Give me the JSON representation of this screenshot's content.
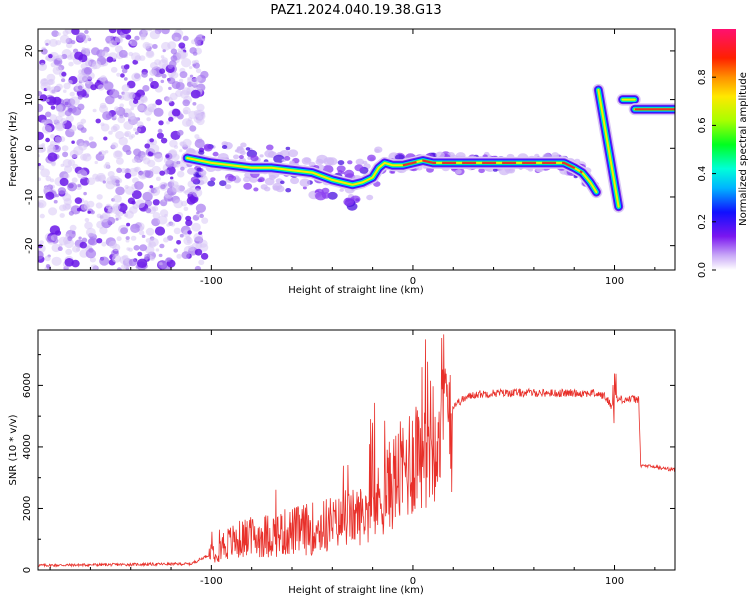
{
  "title": "PAZ1.2024.040.19.38.G13",
  "colors": {
    "snr_line": "#e8302a",
    "spectrogram_low": "#d9c8f5",
    "spectrogram_mid": "#6a18e8",
    "track_core": "#e8302a"
  },
  "chart_data": [
    {
      "type": "heatmap",
      "name": "spectrogram",
      "xlabel": "Height of straight line (km)",
      "ylabel": "Frequency (Hz)",
      "xlim": [
        -186,
        130
      ],
      "ylim": [
        -25,
        24.5
      ],
      "x_ticks": [
        -100,
        0,
        100
      ],
      "x_tick_labels": [
        "-100",
        "0",
        "100"
      ],
      "y_ticks": [
        -20,
        -10,
        0,
        10,
        20
      ],
      "y_tick_labels": [
        "-20",
        "-10",
        "0",
        "10",
        "20"
      ],
      "colorbar": {
        "label": "Normalized spectral amplitude",
        "range": [
          0,
          1
        ],
        "ticks": [
          0.0,
          0.2,
          0.4,
          0.6,
          0.8
        ],
        "tick_labels": [
          "0.0",
          "0.2",
          "0.4",
          "0.6",
          "0.8"
        ],
        "colormap": "rainbow (white-violet-blue-cyan-green-yellow-red-magenta)"
      },
      "noise_region_x": [
        -186,
        -107
      ],
      "signal_track": {
        "x": [
          -112,
          -100,
          -90,
          -80,
          -70,
          -60,
          -50,
          -40,
          -35,
          -30,
          -25,
          -20,
          -17,
          -14,
          -10,
          -5,
          0,
          5,
          10,
          20,
          30,
          40,
          50,
          60,
          70,
          75,
          80,
          84,
          88,
          91
        ],
        "y": [
          -2,
          -3,
          -3.5,
          -4,
          -4,
          -4.5,
          -5,
          -6.5,
          -7,
          -7.5,
          -7,
          -6,
          -4,
          -3,
          -3.5,
          -3.5,
          -3,
          -2.5,
          -3,
          -3,
          -3,
          -3,
          -3,
          -3,
          -3,
          -3,
          -4,
          -5,
          -7,
          -9
        ]
      },
      "tail_segments": [
        {
          "x": [
            92,
            102
          ],
          "y": [
            12,
            -12
          ]
        },
        {
          "x": [
            104,
            110
          ],
          "y": [
            10,
            10
          ]
        },
        {
          "x": [
            110,
            130
          ],
          "y": [
            8,
            8
          ]
        }
      ]
    },
    {
      "type": "line",
      "name": "snr",
      "xlabel": "Height of straight line (km)",
      "ylabel": "SNR (10 * v/v)",
      "xlim": [
        -186,
        130
      ],
      "ylim": [
        0,
        7800
      ],
      "x_ticks": [
        -100,
        0,
        100
      ],
      "x_tick_labels": [
        "-100",
        "0",
        "100"
      ],
      "y_ticks": [
        0,
        2000,
        4000,
        6000
      ],
      "y_tick_labels": [
        "0",
        "2000",
        "4000",
        "6000"
      ],
      "envelope": {
        "x": [
          -186,
          -110,
          -101,
          -95,
          -85,
          -75,
          -65,
          -55,
          -45,
          -35,
          -25,
          -20,
          -15,
          -10,
          -5,
          0,
          5,
          10,
          15,
          20,
          25,
          30,
          40,
          50,
          60,
          70,
          80,
          90,
          95,
          99,
          101,
          104,
          108,
          112,
          113,
          120,
          130
        ],
        "y": [
          150,
          200,
          500,
          800,
          1000,
          1100,
          1200,
          1300,
          1400,
          1600,
          1800,
          2000,
          2400,
          2900,
          3200,
          3700,
          4400,
          4700,
          5100,
          5350,
          5550,
          5700,
          5750,
          5760,
          5760,
          5750,
          5750,
          5750,
          5650,
          5300,
          5550,
          5550,
          5550,
          5550,
          3400,
          3350,
          3250
        ]
      }
    }
  ]
}
